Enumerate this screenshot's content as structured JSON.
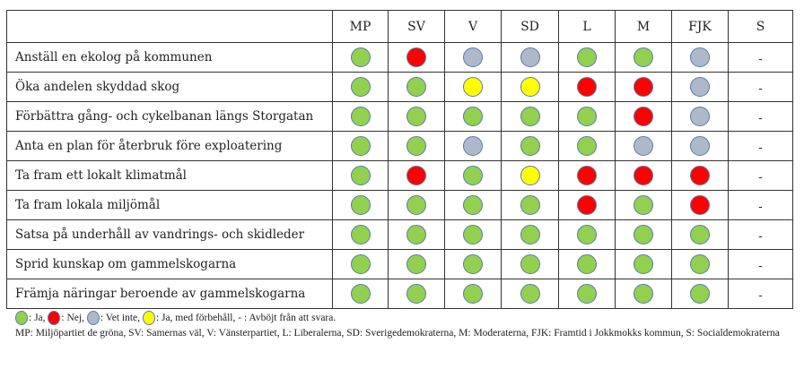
{
  "colors": {
    "ja": "#92d050",
    "nej": "#ff0000",
    "vet_inte": "#adb9ca",
    "forbehall": "#ffff00"
  },
  "parties": [
    "MP",
    "SV",
    "V",
    "SD",
    "L",
    "M",
    "FJK",
    "S"
  ],
  "rows": [
    {
      "label": "Anställ en ekolog på kommunen",
      "votes": [
        "ja",
        "nej",
        "vet_inte",
        "vet_inte",
        "ja",
        "ja",
        "vet_inte",
        "-"
      ]
    },
    {
      "label": "Öka andelen skyddad skog",
      "votes": [
        "ja",
        "ja",
        "forbehall",
        "forbehall",
        "nej",
        "nej",
        "vet_inte",
        "-"
      ]
    },
    {
      "label": "Förbättra gång- och cykelbanan längs Storgatan",
      "votes": [
        "ja",
        "ja",
        "ja",
        "ja",
        "ja",
        "nej",
        "vet_inte",
        "-"
      ]
    },
    {
      "label": "Anta en plan för återbruk före exploatering",
      "votes": [
        "ja",
        "ja",
        "vet_inte",
        "ja",
        "ja",
        "vet_inte",
        "vet_inte",
        "-"
      ]
    },
    {
      "label": "Ta fram ett lokalt klimatmål",
      "votes": [
        "ja",
        "nej",
        "ja",
        "forbehall",
        "nej",
        "nej",
        "nej",
        "-"
      ]
    },
    {
      "label": "Ta fram lokala miljömål",
      "votes": [
        "ja",
        "ja",
        "ja",
        "ja",
        "nej",
        "ja",
        "nej",
        "-"
      ]
    },
    {
      "label": "Satsa på underhåll av vandrings- och skidleder",
      "votes": [
        "ja",
        "ja",
        "ja",
        "ja",
        "ja",
        "ja",
        "ja",
        "-"
      ]
    },
    {
      "label": "Sprid kunskap om gammelskogarna",
      "votes": [
        "ja",
        "ja",
        "ja",
        "ja",
        "ja",
        "ja",
        "ja",
        "-"
      ]
    },
    {
      "label": "Främja näringar beroende av gammelskogarna",
      "votes": [
        "ja",
        "ja",
        "ja",
        "ja",
        "ja",
        "ja",
        "ja",
        "-"
      ]
    }
  ],
  "legend": {
    "ja": ": Ja,",
    "nej": ": Nej,",
    "vet_inte": ": Vet inte,",
    "forbehall": ": Ja, med förbehåll, - : Avböjt från att svara.",
    "abbrev": "MP: Miljöpartiet de gröna, SV: Samernas väl, V: Vänsterpartiet, L: Liberalerna, SD: Sverigedemokraterna, M: Moderaterna, FJK: Framtid i Jokkmokks kommun, S: Socialdemokraterna"
  }
}
